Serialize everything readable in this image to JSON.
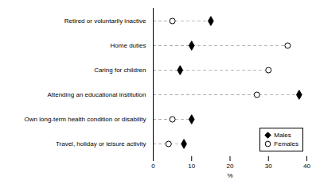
{
  "chart_data": {
    "type": "dot",
    "categories": [
      "Travel, holiday or leisure activity",
      "Own long-term health condition or disability",
      "Attending an educational institution",
      "Caring for children",
      "Home duties",
      "Retired or voluntarily inactive"
    ],
    "series": [
      {
        "name": "Males",
        "color": "#000000",
        "marker": "diamond",
        "values": [
          8,
          10,
          38,
          7,
          10,
          15
        ]
      },
      {
        "name": "Females",
        "color": "#000000",
        "marker": "circle_open",
        "values": [
          4,
          5,
          27,
          30,
          35,
          5
        ]
      }
    ],
    "color": "#aaaaaa",
    "line_style": "dashed",
    "xlabel": "%",
    "xlim": [
      0,
      40
    ],
    "xticks": [
      0,
      10,
      20,
      30,
      40
    ],
    "legend": "lower right",
    "grid": false
  }
}
